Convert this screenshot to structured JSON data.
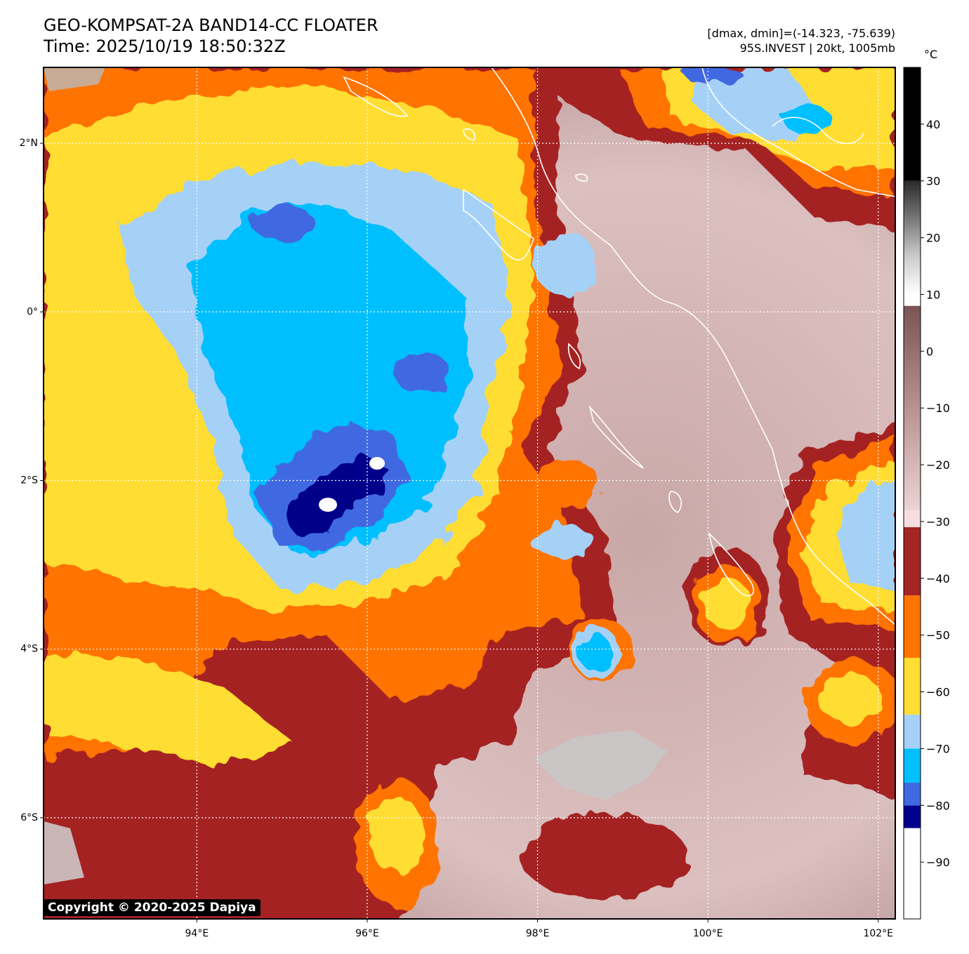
{
  "header": {
    "title_line1": "GEO-KOMPSAT-2A BAND14-CC FLOATER",
    "title_line2": "Time: 2025/10/19 18:50:32Z",
    "info_line1": "[dmax, dmin]=(-14.323, -75.639)",
    "info_line2": "95S.INVEST | 20kt, 1005mb"
  },
  "map": {
    "lon_range": [
      92.2,
      102.2
    ],
    "lat_range": [
      -7.2,
      2.9
    ],
    "lon_ticks": [
      {
        "value": 94,
        "label": "94°E"
      },
      {
        "value": 96,
        "label": "96°E"
      },
      {
        "value": 98,
        "label": "98°E"
      },
      {
        "value": 100,
        "label": "100°E"
      },
      {
        "value": 102,
        "label": "102°E"
      }
    ],
    "lat_ticks": [
      {
        "value": 2,
        "label": "2°N"
      },
      {
        "value": 0,
        "label": "0°"
      },
      {
        "value": -2,
        "label": "2°S"
      },
      {
        "value": -4,
        "label": "4°S"
      },
      {
        "value": -6,
        "label": "6°S"
      }
    ],
    "gridlines": "dotted white",
    "copyright": "Copyright © 2020-2025 Dapiya"
  },
  "colorbar": {
    "unit": "°C",
    "range": [
      -100,
      50
    ],
    "tick_values": [
      40,
      30,
      20,
      10,
      0,
      -10,
      -20,
      -30,
      -40,
      -50,
      -60,
      -70,
      -80,
      -90
    ],
    "tick_labels": [
      "40",
      "30",
      "20",
      "10",
      "0",
      "−10",
      "−20",
      "−30",
      "−40",
      "−50",
      "−60",
      "−70",
      "−80",
      "−90"
    ],
    "segments": [
      {
        "from": -100,
        "to": -84,
        "color": "#ffffff"
      },
      {
        "from": -84,
        "to": -80,
        "color": "#00008b"
      },
      {
        "from": -80,
        "to": -76,
        "color": "#4169e1"
      },
      {
        "from": -76,
        "to": -70,
        "color": "#00bfff"
      },
      {
        "from": -70,
        "to": -64,
        "color": "#a6d1f7"
      },
      {
        "from": -64,
        "to": -54,
        "color": "#ffdd33"
      },
      {
        "from": -54,
        "to": -43,
        "color": "#ff7300"
      },
      {
        "from": -43,
        "to": -31,
        "color": "#a52424"
      },
      {
        "from": -31,
        "to": -28,
        "color": "#f7dede"
      },
      {
        "from": -28,
        "to": 8,
        "gradient": [
          "#e9cccc",
          "#b89292",
          "#7a5555"
        ]
      },
      {
        "from": 8,
        "to": 10,
        "color": "#ffffff"
      },
      {
        "from": 10,
        "to": 30,
        "gradient": [
          "#ffffff",
          "#c8c8c8",
          "#707070",
          "#2a2a2a"
        ]
      },
      {
        "from": 30,
        "to": 50,
        "color": "#000000"
      }
    ]
  }
}
